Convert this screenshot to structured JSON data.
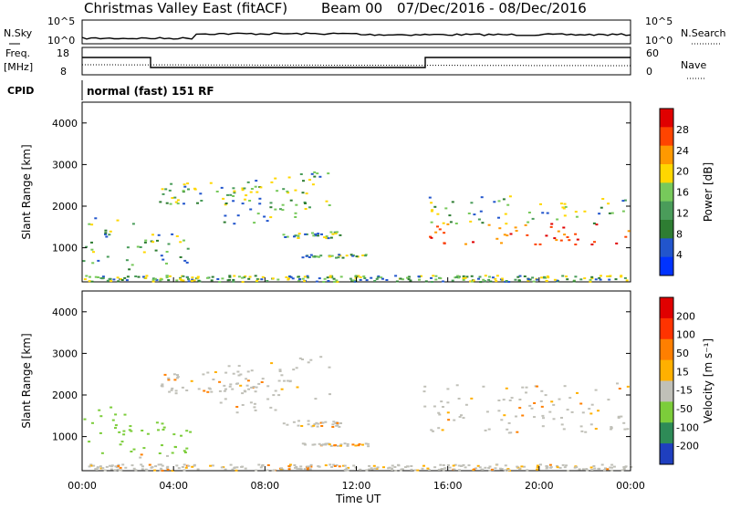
{
  "header": {
    "site": "Christmas Valley East (fitACF)",
    "beam": "Beam 00",
    "dates": "07/Dec/2016 - 08/Dec/2016"
  },
  "panels": {
    "noise": {
      "left_label": "N.Sky",
      "right_label": "N.Search",
      "left_ticks": [
        "10^5",
        "10^0"
      ],
      "right_ticks": [
        "10^5",
        "10^0"
      ]
    },
    "freq": {
      "left_label": "Freq.",
      "left_unit": "[MHz]",
      "left_ticks": [
        "18",
        "8"
      ],
      "right_label": "Nave",
      "right_ticks": [
        "60",
        "0"
      ]
    },
    "cpid": {
      "label": "CPID",
      "text": "normal (fast) 151 RF"
    }
  },
  "chart_data": [
    {
      "type": "heatmap",
      "title": "Power",
      "ylabel": "Slant Range [km]",
      "ylim": [
        180,
        4500
      ],
      "yticks": [
        "4000",
        "3000",
        "2000",
        "1000"
      ],
      "xticks": [
        "00:00",
        "04:00",
        "08:00",
        "12:00",
        "16:00",
        "20:00",
        "00:00"
      ],
      "colorbar": {
        "label": "Power [dB]",
        "ticks": [
          "28",
          "24",
          "20",
          "16",
          "12",
          "8",
          "4"
        ],
        "colors": [
          "#0033ff",
          "#2255cc",
          "#2e7d32",
          "#4a9c5a",
          "#77c95b",
          "#ffd700",
          "#ff9900",
          "#ff4400",
          "#e00000"
        ]
      }
    },
    {
      "type": "heatmap",
      "title": "Velocity",
      "ylabel": "Slant Range [km]",
      "xlabel": "Time UT",
      "ylim": [
        180,
        4500
      ],
      "yticks": [
        "4000",
        "3000",
        "2000",
        "1000"
      ],
      "xticks": [
        "00:00",
        "04:00",
        "08:00",
        "12:00",
        "16:00",
        "20:00",
        "00:00"
      ],
      "colorbar": {
        "label": "Velocity [m s⁻¹]",
        "ticks": [
          "200",
          "100",
          "50",
          "15",
          "-15",
          "-50",
          "-100",
          "-200"
        ],
        "colors": [
          "#1f3fbf",
          "#2e8b57",
          "#7ccd3a",
          "#c0c0b8",
          "#ffb000",
          "#ff7f00",
          "#ff3300",
          "#e00000"
        ]
      }
    }
  ]
}
